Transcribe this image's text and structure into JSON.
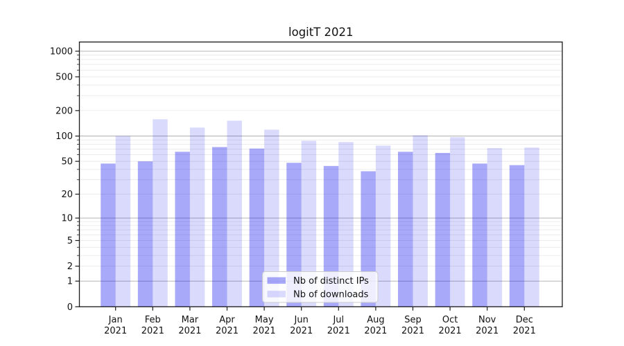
{
  "figure": {
    "title": "logitT 2021"
  },
  "chart_data": {
    "type": "bar",
    "title": "logitT 2021",
    "categories": [
      "Jan 2021",
      "Feb 2021",
      "Mar 2021",
      "Apr 2021",
      "May 2021",
      "Jun 2021",
      "Jul 2021",
      "Aug 2021",
      "Sep 2021",
      "Oct 2021",
      "Nov 2021",
      "Dec 2021"
    ],
    "x_tick_line1": [
      "Jan",
      "Feb",
      "Mar",
      "Apr",
      "May",
      "Jun",
      "Jul",
      "Aug",
      "Sep",
      "Oct",
      "Nov",
      "Dec"
    ],
    "x_tick_line2": [
      "2021",
      "2021",
      "2021",
      "2021",
      "2021",
      "2021",
      "2021",
      "2021",
      "2021",
      "2021",
      "2021",
      "2021"
    ],
    "series": [
      {
        "name": "Nb of distinct IPs",
        "color": "rgba(8,8,238,0.35)",
        "values": [
          47,
          50,
          65,
          74,
          71,
          48,
          44,
          38,
          65,
          63,
          47,
          45
        ]
      },
      {
        "name": "Nb of downloads",
        "color": "rgba(8,8,238,0.15)",
        "values": [
          100,
          158,
          126,
          152,
          119,
          88,
          85,
          77,
          102,
          97,
          72,
          73
        ]
      }
    ],
    "xlabel": "",
    "ylabel": "",
    "y_axis": {
      "scale": "log1p",
      "ticks": [
        0,
        1,
        2,
        5,
        10,
        20,
        50,
        100,
        200,
        500,
        1000
      ],
      "tick_labels": [
        "0",
        "1",
        "2",
        "5",
        "10",
        "20",
        "50",
        "100",
        "200",
        "500",
        "1000"
      ],
      "major_grid_values": [
        1,
        10,
        100,
        1000
      ],
      "minor_grid_values": [
        2,
        3,
        4,
        5,
        6,
        7,
        8,
        9,
        20,
        30,
        40,
        50,
        60,
        70,
        80,
        90,
        200,
        300,
        400,
        500,
        600,
        700,
        800,
        900
      ],
      "ylim": [
        0,
        1276
      ]
    },
    "legend": {
      "position": "lower center",
      "entries": [
        "Nb of distinct IPs",
        "Nb of downloads"
      ]
    },
    "grid": "on",
    "colors": {
      "bar_distinct_ips": "rgba(8,8,238,0.35)",
      "bar_downloads": "rgba(8,8,238,0.15)",
      "grid_major": "#b5b5b5",
      "grid_minor": "#e9e9e9",
      "axis": "#1a1a1a",
      "text": "#111111",
      "legend_border": "#cccccc",
      "legend_bg_rgba": "rgba(255,255,255,0.8)"
    }
  }
}
